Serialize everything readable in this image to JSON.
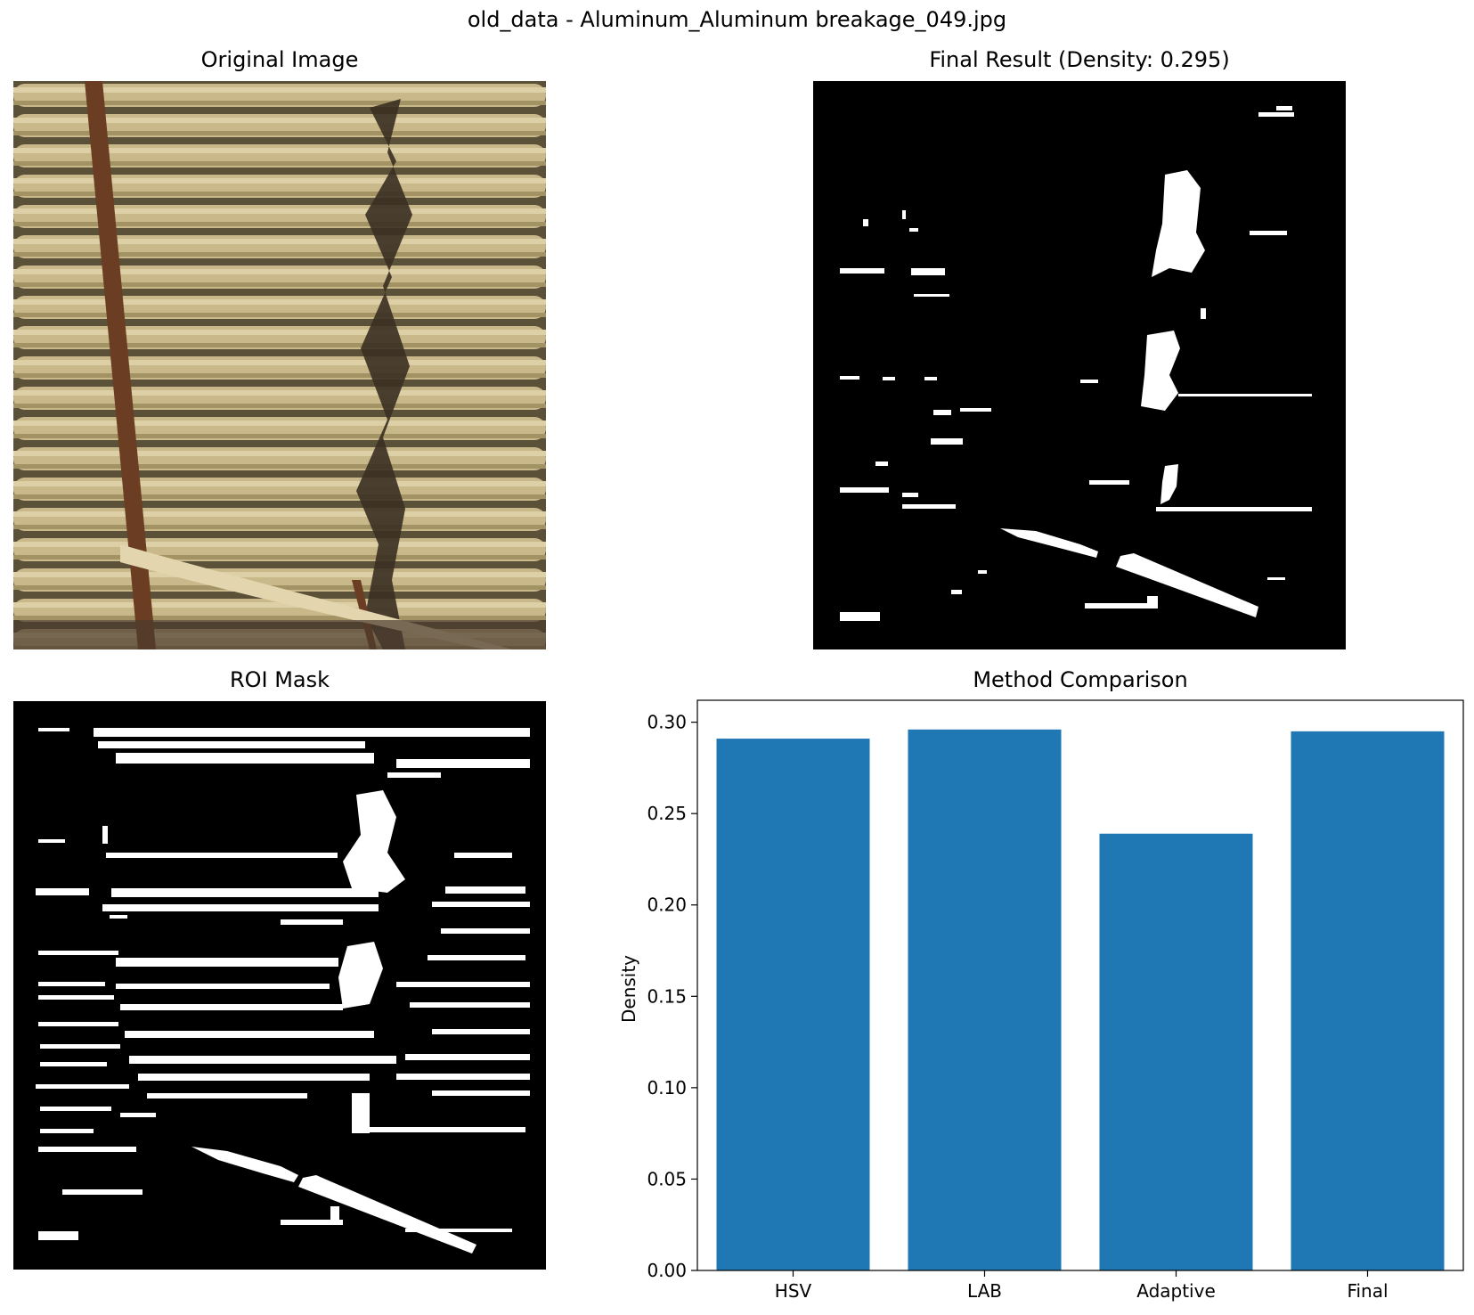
{
  "figure": {
    "suptitle": "old_data - Aluminum_Aluminum breakage_049.jpg"
  },
  "panels": {
    "original": {
      "title": "Original Image"
    },
    "final": {
      "title": "Final Result (Density: 0.295)"
    },
    "roi": {
      "title": "ROI Mask"
    }
  },
  "chart_data": {
    "type": "bar",
    "title": "Method Comparison",
    "xlabel": "",
    "ylabel": "Density",
    "categories": [
      "HSV",
      "LAB",
      "Adaptive",
      "Final"
    ],
    "values": [
      0.291,
      0.296,
      0.239,
      0.295
    ],
    "ylim": [
      0,
      0.312
    ],
    "yticks": [
      "0.00",
      "0.05",
      "0.10",
      "0.15",
      "0.20",
      "0.25",
      "0.30"
    ],
    "bar_color": "#1f77b4",
    "grid": false
  }
}
